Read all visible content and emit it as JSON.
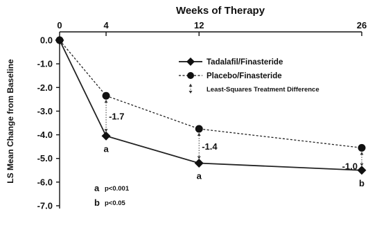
{
  "chart_data": {
    "type": "line",
    "title": "Weeks of Therapy",
    "xlabel": "Weeks of Therapy",
    "ylabel": "LS Mean Change from Baseline",
    "x": [
      0,
      4,
      12,
      26
    ],
    "x_ticks": [
      "0",
      "4",
      "12",
      "26"
    ],
    "xlim": [
      0,
      26
    ],
    "ylim": [
      -7.0,
      0.0
    ],
    "y_ticks": [
      "0.0",
      "-1.0",
      "-2.0",
      "-3.0",
      "-4.0",
      "-5.0",
      "-6.0",
      "-7.0"
    ],
    "y_tick_values": [
      0,
      -1,
      -2,
      -3,
      -4,
      -5,
      -6,
      -7
    ],
    "series": [
      {
        "name": "Tadalafil/Finasteride",
        "values": [
          0.0,
          -4.05,
          -5.2,
          -5.5
        ],
        "color": "#222222",
        "marker": "diamond",
        "line": "solid"
      },
      {
        "name": "Placebo/Finasteride",
        "values": [
          0.0,
          -2.35,
          -3.75,
          -4.55
        ],
        "color": "#222222",
        "marker": "circle",
        "line": "dashed"
      }
    ],
    "differences": [
      {
        "x": 4,
        "label": "-1.7"
      },
      {
        "x": 12,
        "label": "-1.4"
      },
      {
        "x": 26,
        "label": "-1.0"
      }
    ],
    "significance_marks": [
      {
        "x": 4,
        "label": "a"
      },
      {
        "x": 12,
        "label": "a"
      },
      {
        "x": 26,
        "label": "b"
      }
    ],
    "legend": {
      "placement": "top-right",
      "entries": [
        "Tadalafil/Finasteride",
        "Placebo/Finasteride",
        "Least-Squares Treatment Difference"
      ]
    },
    "footnotes": [
      {
        "letter": "a",
        "text": "p<0.001"
      },
      {
        "letter": "b",
        "text": "p<0.05"
      }
    ],
    "grid": false
  }
}
